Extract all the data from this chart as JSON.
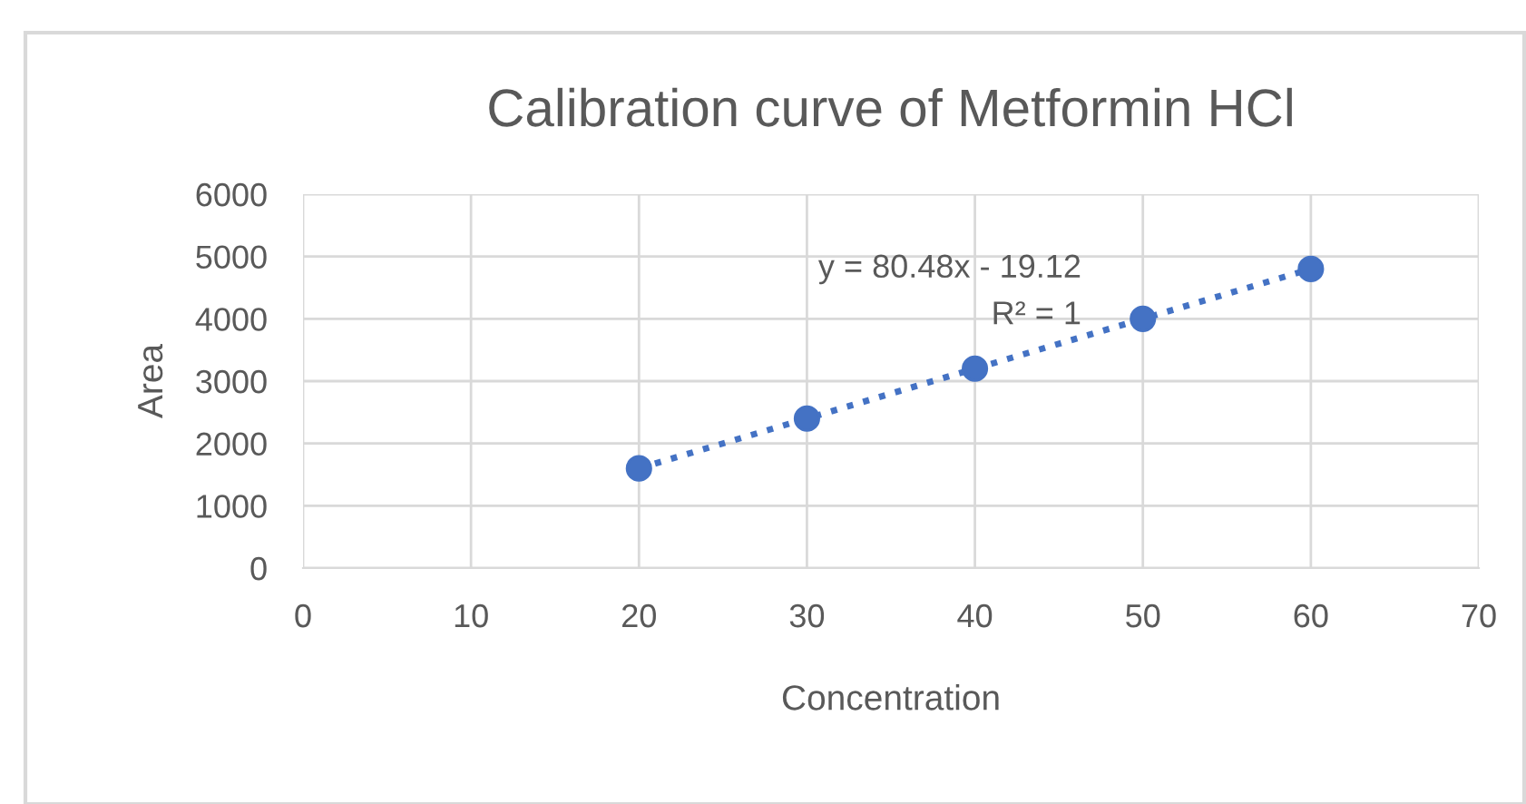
{
  "chart_data": {
    "type": "scatter",
    "title": "Calibration curve of Metformin HCl",
    "xlabel": "Concentration",
    "ylabel": "Area",
    "series": [
      {
        "color": "#4472c4",
        "x": [
          20,
          30,
          40,
          50,
          60
        ],
        "values": [
          1600,
          2400,
          3200,
          4000,
          4800
        ],
        "marker": "circle"
      },
      {
        "type": "line",
        "color": "#4472c4",
        "x": [
          20,
          60
        ],
        "values": [
          1600,
          4800
        ],
        "line_style": "dotted",
        "marker": "none"
      }
    ],
    "annotations": [
      "y = 80.48x - 19.12",
      "R² = 1"
    ],
    "xlim": [
      0,
      70
    ],
    "xticks": [
      0,
      10,
      20,
      30,
      40,
      50,
      60,
      70
    ],
    "ylim": [
      0,
      6000
    ],
    "yticks": [
      0,
      1000,
      2000,
      3000,
      4000,
      5000,
      6000
    ],
    "grid": true,
    "legend": false
  }
}
